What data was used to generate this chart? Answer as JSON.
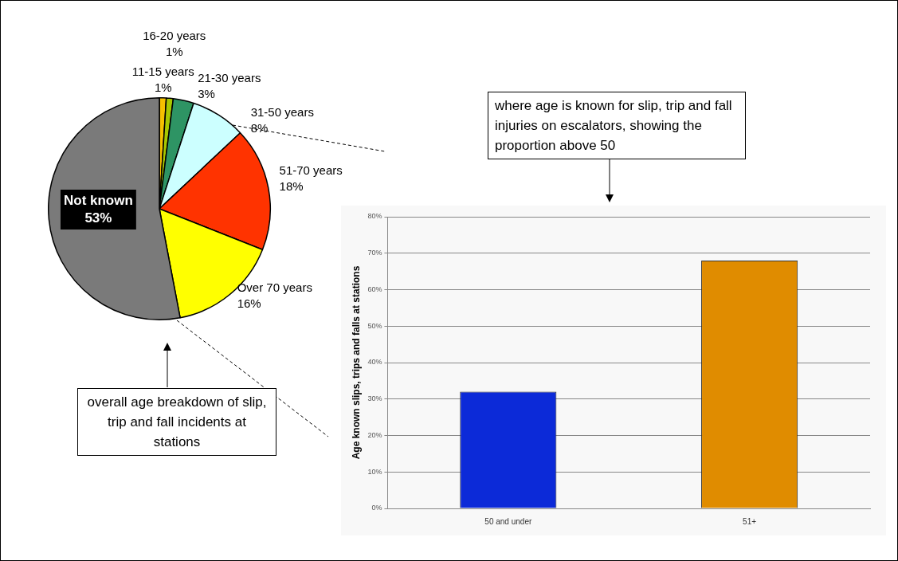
{
  "chart_data": [
    {
      "type": "pie",
      "categories": [
        "11-15 years",
        "16-20 years",
        "21-30 years",
        "31-50 years",
        "51-70 years",
        "Over 70 years",
        "Not known"
      ],
      "values": [
        1,
        1,
        3,
        8,
        18,
        16,
        53
      ],
      "value_labels": [
        "1%",
        "1%",
        "3%",
        "8%",
        "18%",
        "16%",
        "53%"
      ],
      "colors": [
        "#f5c000",
        "#a8c800",
        "#2e9464",
        "#ccffff",
        "#ff3300",
        "#ffff00",
        "#7a7a7a"
      ],
      "annotations": [
        "overall age breakdown of slip, trip and fall incidents at stations"
      ]
    },
    {
      "type": "bar",
      "categories": [
        "50 and under",
        "51+"
      ],
      "values": [
        32,
        68
      ],
      "colors": [
        "#0c2ad8",
        "#e08c00"
      ],
      "ylabel": "Age known slips, trips and falls at stations",
      "ylim": [
        0,
        80
      ],
      "yticks": [
        {
          "value": 0,
          "label": "0%"
        },
        {
          "value": 10,
          "label": "10%"
        },
        {
          "value": 20,
          "label": "20%"
        },
        {
          "value": 30,
          "label": "30%"
        },
        {
          "value": 40,
          "label": "40%"
        },
        {
          "value": 50,
          "label": "50%"
        },
        {
          "value": 60,
          "label": "60%"
        },
        {
          "value": 70,
          "label": "70%"
        },
        {
          "value": 80,
          "label": "80%"
        }
      ],
      "grid": "y",
      "annotations": [
        "where age is known for slip, trip and fall injuries on escalators, showing the proportion above 50"
      ]
    }
  ]
}
